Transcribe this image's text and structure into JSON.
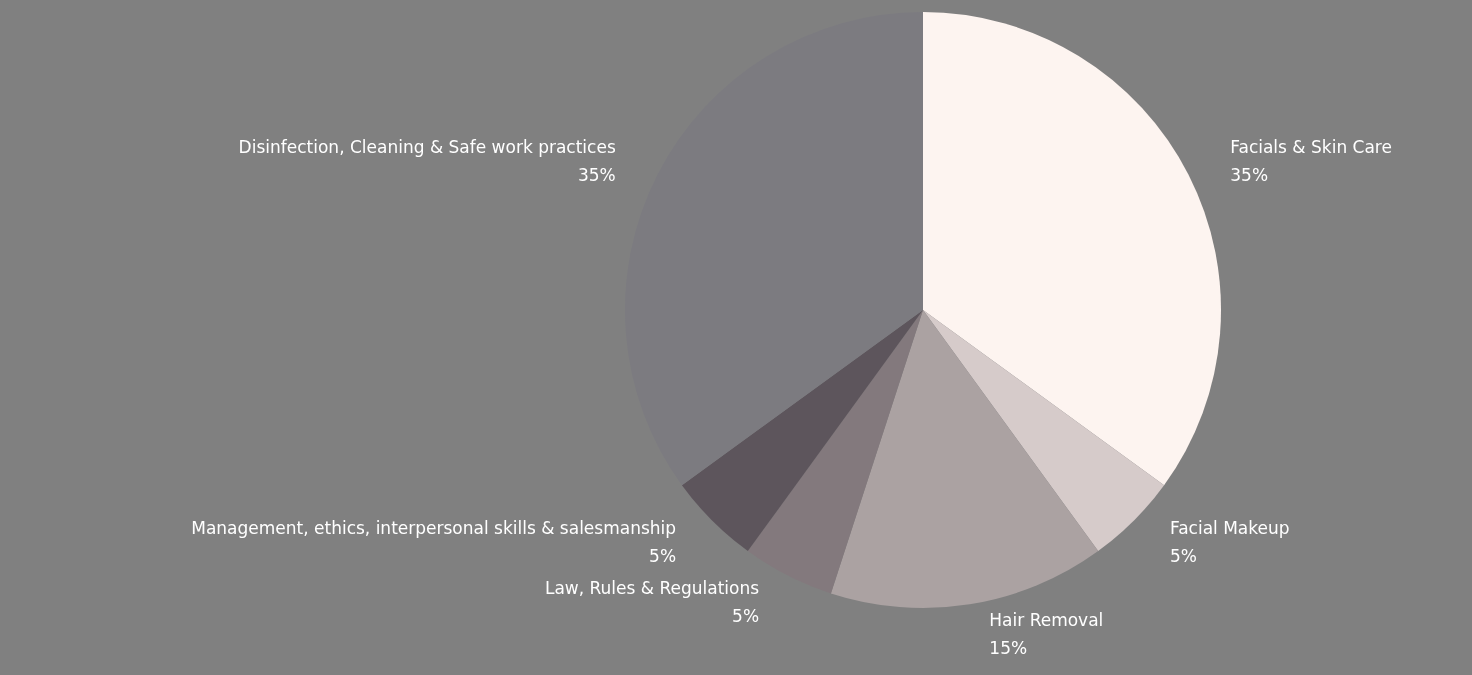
{
  "chart_data": {
    "type": "pie",
    "categories": [
      "Facials & Skin Care",
      "Facial Makeup",
      "Hair Removal",
      "Law, Rules & Regulations",
      "Management, ethics, interpersonal skills & salesmanship",
      "Disinfection, Cleaning & Safe work practices"
    ],
    "values": [
      35,
      5,
      15,
      5,
      5,
      35
    ],
    "value_labels": [
      "35%",
      "5%",
      "15%",
      "5%",
      "5%",
      "35%"
    ],
    "colors": [
      "#fdf4f0",
      "#d6cbca",
      "#aba2a2",
      "#83797d",
      "#5d555c",
      "#7c7b80"
    ],
    "legend": false
  }
}
